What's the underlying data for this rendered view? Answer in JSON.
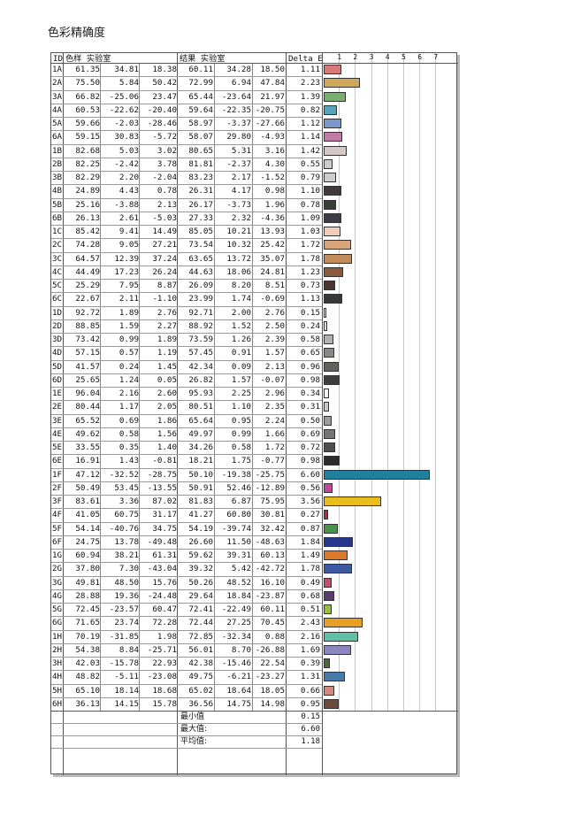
{
  "title": "色彩精确度",
  "headers": {
    "id": "ID",
    "sample": "色样 实验室",
    "result": "结果 实验室",
    "delta": "Delta E"
  },
  "scale_ticks": [
    "1",
    "2",
    "3",
    "4",
    "5",
    "6",
    "7"
  ],
  "rows": [
    {
      "id": "1A",
      "s": [
        "61.35",
        "34.81",
        "18.38"
      ],
      "r": [
        "60.11",
        "34.28",
        "18.50"
      ],
      "de": "1.11",
      "v": 1.11,
      "c": "#d97878"
    },
    {
      "id": "2A",
      "s": [
        "75.50",
        "5.84",
        "50.42"
      ],
      "r": [
        "72.99",
        "6.94",
        "47.84"
      ],
      "de": "2.23",
      "v": 2.23,
      "c": "#d1a85a"
    },
    {
      "id": "3A",
      "s": [
        "66.82",
        "-25.06",
        "23.47"
      ],
      "r": [
        "65.44",
        "-23.64",
        "21.97"
      ],
      "de": "1.39",
      "v": 1.39,
      "c": "#78b06b"
    },
    {
      "id": "4A",
      "s": [
        "60.53",
        "-22.62",
        "-20.40"
      ],
      "r": [
        "59.64",
        "-22.35",
        "-20.75"
      ],
      "de": "0.82",
      "v": 0.82,
      "c": "#56a4b9"
    },
    {
      "id": "5A",
      "s": [
        "59.66",
        "-2.03",
        "-28.46"
      ],
      "r": [
        "58.97",
        "-3.37",
        "-27.66"
      ],
      "de": "1.12",
      "v": 1.12,
      "c": "#7a98c9"
    },
    {
      "id": "6A",
      "s": [
        "59.15",
        "30.83",
        "-5.72"
      ],
      "r": [
        "58.07",
        "29.80",
        "-4.93"
      ],
      "de": "1.14",
      "v": 1.14,
      "c": "#c27aa6"
    },
    {
      "id": "1B",
      "s": [
        "82.68",
        "5.03",
        "3.02"
      ],
      "r": [
        "80.65",
        "5.31",
        "3.16"
      ],
      "de": "1.42",
      "v": 1.42,
      "c": "#d4c9c7"
    },
    {
      "id": "2B",
      "s": [
        "82.25",
        "-2.42",
        "3.78"
      ],
      "r": [
        "81.81",
        "-2.37",
        "4.30"
      ],
      "de": "0.55",
      "v": 0.55,
      "c": "#cbcfc7"
    },
    {
      "id": "3B",
      "s": [
        "82.29",
        "2.20",
        "-2.04"
      ],
      "r": [
        "83.23",
        "2.17",
        "-1.52"
      ],
      "de": "0.79",
      "v": 0.79,
      "c": "#d0cdd2"
    },
    {
      "id": "4B",
      "s": [
        "24.89",
        "4.43",
        "0.78"
      ],
      "r": [
        "26.31",
        "4.17",
        "0.98"
      ],
      "de": "1.10",
      "v": 1.1,
      "c": "#3e3a3a"
    },
    {
      "id": "5B",
      "s": [
        "25.16",
        "-3.88",
        "2.13"
      ],
      "r": [
        "26.17",
        "-3.73",
        "1.96"
      ],
      "de": "0.78",
      "v": 0.78,
      "c": "#383d38"
    },
    {
      "id": "6B",
      "s": [
        "26.13",
        "2.61",
        "-5.03"
      ],
      "r": [
        "27.33",
        "2.32",
        "-4.36"
      ],
      "de": "1.09",
      "v": 1.09,
      "c": "#3b3c45"
    },
    {
      "id": "1C",
      "s": [
        "85.42",
        "9.41",
        "14.49"
      ],
      "r": [
        "85.05",
        "10.21",
        "13.93"
      ],
      "de": "1.03",
      "v": 1.03,
      "c": "#f0cdb8"
    },
    {
      "id": "2C",
      "s": [
        "74.28",
        "9.05",
        "27.21"
      ],
      "r": [
        "73.54",
        "10.32",
        "25.42"
      ],
      "de": "1.72",
      "v": 1.72,
      "c": "#d8a67c"
    },
    {
      "id": "3C",
      "s": [
        "64.57",
        "12.39",
        "37.24"
      ],
      "r": [
        "63.65",
        "13.72",
        "35.07"
      ],
      "de": "1.78",
      "v": 1.78,
      "c": "#c08c5c"
    },
    {
      "id": "4C",
      "s": [
        "44.49",
        "17.23",
        "26.24"
      ],
      "r": [
        "44.63",
        "18.06",
        "24.81"
      ],
      "de": "1.23",
      "v": 1.23,
      "c": "#8a5a3a"
    },
    {
      "id": "5C",
      "s": [
        "25.29",
        "7.95",
        "8.87"
      ],
      "r": [
        "26.09",
        "8.20",
        "8.51"
      ],
      "de": "0.73",
      "v": 0.73,
      "c": "#4a3530"
    },
    {
      "id": "6C",
      "s": [
        "22.67",
        "2.11",
        "-1.10"
      ],
      "r": [
        "23.99",
        "1.74",
        "-0.69"
      ],
      "de": "1.13",
      "v": 1.13,
      "c": "#383637"
    },
    {
      "id": "1D",
      "s": [
        "92.72",
        "1.89",
        "2.76"
      ],
      "r": [
        "92.71",
        "2.00",
        "2.76"
      ],
      "de": "0.15",
      "v": 0.15,
      "c": "#ece9e6"
    },
    {
      "id": "2D",
      "s": [
        "88.85",
        "1.59",
        "2.27"
      ],
      "r": [
        "88.92",
        "1.52",
        "2.50"
      ],
      "de": "0.24",
      "v": 0.24,
      "c": "#e0dcd9"
    },
    {
      "id": "3D",
      "s": [
        "73.42",
        "0.99",
        "1.89"
      ],
      "r": [
        "73.59",
        "1.26",
        "2.39"
      ],
      "de": "0.58",
      "v": 0.58,
      "c": "#b4b2b0"
    },
    {
      "id": "4D",
      "s": [
        "57.15",
        "0.57",
        "1.19"
      ],
      "r": [
        "57.45",
        "0.91",
        "1.57"
      ],
      "de": "0.65",
      "v": 0.65,
      "c": "#8a8988"
    },
    {
      "id": "5D",
      "s": [
        "41.57",
        "0.24",
        "1.45"
      ],
      "r": [
        "42.34",
        "0.09",
        "2.13"
      ],
      "de": "0.96",
      "v": 0.96,
      "c": "#626160"
    },
    {
      "id": "6D",
      "s": [
        "25.65",
        "1.24",
        "0.05"
      ],
      "r": [
        "26.82",
        "1.57",
        "-0.07"
      ],
      "de": "0.98",
      "v": 0.98,
      "c": "#3e3d3d"
    },
    {
      "id": "1E",
      "s": [
        "96.04",
        "2.16",
        "2.60"
      ],
      "r": [
        "95.93",
        "2.25",
        "2.96"
      ],
      "de": "0.34",
      "v": 0.34,
      "c": "#f6f3f0"
    },
    {
      "id": "2E",
      "s": [
        "80.44",
        "1.17",
        "2.05"
      ],
      "r": [
        "80.51",
        "1.10",
        "2.35"
      ],
      "de": "0.31",
      "v": 0.31,
      "c": "#cbc9c6"
    },
    {
      "id": "3E",
      "s": [
        "65.52",
        "0.69",
        "1.86"
      ],
      "r": [
        "65.64",
        "0.95",
        "2.24"
      ],
      "de": "0.50",
      "v": 0.5,
      "c": "#9f9e9c"
    },
    {
      "id": "4E",
      "s": [
        "49.62",
        "0.58",
        "1.56"
      ],
      "r": [
        "49.97",
        "0.99",
        "1.66"
      ],
      "de": "0.69",
      "v": 0.69,
      "c": "#767574"
    },
    {
      "id": "5E",
      "s": [
        "33.55",
        "0.35",
        "1.40"
      ],
      "r": [
        "34.26",
        "0.58",
        "1.72"
      ],
      "de": "0.72",
      "v": 0.72,
      "c": "#504f4e"
    },
    {
      "id": "6E",
      "s": [
        "16.91",
        "1.43",
        "-0.81"
      ],
      "r": [
        "18.21",
        "1.75",
        "-0.77"
      ],
      "de": "0.98",
      "v": 0.98,
      "c": "#2c2b2c"
    },
    {
      "id": "1F",
      "s": [
        "47.12",
        "-32.52",
        "-28.75"
      ],
      "r": [
        "50.10",
        "-19.38",
        "-25.75"
      ],
      "de": "6.60",
      "v": 6.6,
      "c": "#1f7f9d"
    },
    {
      "id": "2F",
      "s": [
        "50.49",
        "53.45",
        "-13.55"
      ],
      "r": [
        "50.91",
        "52.46",
        "-12.89"
      ],
      "de": "0.56",
      "v": 0.56,
      "c": "#c0479a"
    },
    {
      "id": "3F",
      "s": [
        "83.61",
        "3.36",
        "87.02"
      ],
      "r": [
        "81.83",
        "6.87",
        "75.95"
      ],
      "de": "3.56",
      "v": 3.56,
      "c": "#e9be1c"
    },
    {
      "id": "4F",
      "s": [
        "41.05",
        "60.75",
        "31.17"
      ],
      "r": [
        "41.27",
        "60.80",
        "30.81"
      ],
      "de": "0.27",
      "v": 0.27,
      "c": "#b22a3c"
    },
    {
      "id": "5F",
      "s": [
        "54.14",
        "-40.76",
        "34.75"
      ],
      "r": [
        "54.19",
        "-39.74",
        "32.42"
      ],
      "de": "0.87",
      "v": 0.87,
      "c": "#46944a"
    },
    {
      "id": "6F",
      "s": [
        "24.75",
        "13.78",
        "-49.48"
      ],
      "r": [
        "26.60",
        "11.50",
        "-48.63"
      ],
      "de": "1.84",
      "v": 1.84,
      "c": "#24378c"
    },
    {
      "id": "1G",
      "s": [
        "60.94",
        "38.21",
        "61.31"
      ],
      "r": [
        "59.62",
        "39.31",
        "60.13"
      ],
      "de": "1.49",
      "v": 1.49,
      "c": "#e0782a"
    },
    {
      "id": "2G",
      "s": [
        "37.80",
        "7.30",
        "-43.04"
      ],
      "r": [
        "39.32",
        "5.42",
        "-42.72"
      ],
      "de": "1.78",
      "v": 1.78,
      "c": "#3c5aa0"
    },
    {
      "id": "3G",
      "s": [
        "49.81",
        "48.50",
        "15.76"
      ],
      "r": [
        "50.26",
        "48.52",
        "16.10"
      ],
      "de": "0.49",
      "v": 0.49,
      "c": "#c0506a"
    },
    {
      "id": "4G",
      "s": [
        "28.88",
        "19.36",
        "-24.48"
      ],
      "r": [
        "29.64",
        "18.84",
        "-23.87"
      ],
      "de": "0.68",
      "v": 0.68,
      "c": "#5a3c70"
    },
    {
      "id": "5G",
      "s": [
        "72.45",
        "-23.57",
        "60.47"
      ],
      "r": [
        "72.41",
        "-22.49",
        "60.11"
      ],
      "de": "0.51",
      "v": 0.51,
      "c": "#9cbc3c"
    },
    {
      "id": "6G",
      "s": [
        "71.65",
        "23.74",
        "72.28"
      ],
      "r": [
        "72.44",
        "27.25",
        "70.45"
      ],
      "de": "2.43",
      "v": 2.43,
      "c": "#e8a024"
    },
    {
      "id": "1H",
      "s": [
        "70.19",
        "-31.85",
        "1.98"
      ],
      "r": [
        "72.85",
        "-32.34",
        "0.88"
      ],
      "de": "2.16",
      "v": 2.16,
      "c": "#5ec0a4"
    },
    {
      "id": "2H",
      "s": [
        "54.38",
        "8.84",
        "-25.71"
      ],
      "r": [
        "56.01",
        "8.70",
        "-26.88"
      ],
      "de": "1.69",
      "v": 1.69,
      "c": "#8c86c0"
    },
    {
      "id": "3H",
      "s": [
        "42.03",
        "-15.78",
        "22.93"
      ],
      "r": [
        "42.38",
        "-15.46",
        "22.54"
      ],
      "de": "0.39",
      "v": 0.39,
      "c": "#4e6a36"
    },
    {
      "id": "4H",
      "s": [
        "48.82",
        "-5.11",
        "-23.08"
      ],
      "r": [
        "49.75",
        "-6.21",
        "-23.27"
      ],
      "de": "1.31",
      "v": 1.31,
      "c": "#4a7aa8"
    },
    {
      "id": "5H",
      "s": [
        "65.10",
        "18.14",
        "18.68"
      ],
      "r": [
        "65.02",
        "18.64",
        "18.05"
      ],
      "de": "0.66",
      "v": 0.66,
      "c": "#d08a80"
    },
    {
      "id": "6H",
      "s": [
        "36.13",
        "14.15",
        "15.78"
      ],
      "r": [
        "36.56",
        "14.75",
        "14.98"
      ],
      "de": "0.95",
      "v": 0.95,
      "c": "#6e4a3c"
    }
  ],
  "summary": [
    {
      "label": "最小值",
      "value": "0.15"
    },
    {
      "label": "最大值:",
      "value": "6.60"
    },
    {
      "label": "平均值:",
      "value": "1.18"
    }
  ]
}
